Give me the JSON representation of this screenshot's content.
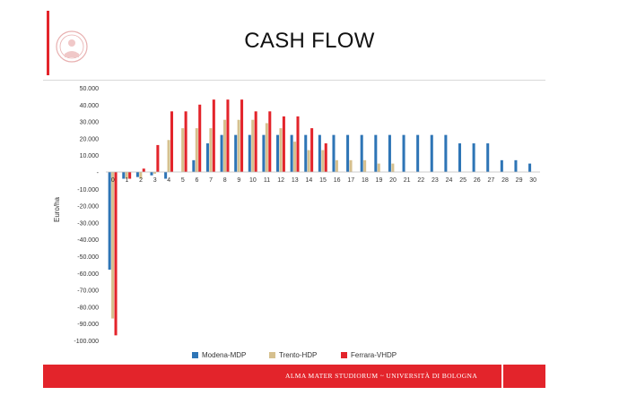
{
  "slide": {
    "title": "CASH FLOW",
    "footer_text": "ALMA MATER STUDIORUM ~ UNIVERSITÀ DI BOLOGNA",
    "footer_color": "#e3242b"
  },
  "chart_data": {
    "type": "bar",
    "title": "",
    "xlabel": "",
    "ylabel": "Euro/ha",
    "ylim": [
      -100000,
      50000
    ],
    "ytick_step": 10000,
    "ytick_labels": [
      "50.000",
      "40.000",
      "30.000",
      "20.000",
      "10.000",
      "-",
      "-10.000",
      "-20.000",
      "-30.000",
      "-40.000",
      "-50.000",
      "-60.000",
      "-70.000",
      "-80.000",
      "-90.000",
      "-100.000"
    ],
    "grid": false,
    "legend": "bottom",
    "categories": [
      "0",
      "1",
      "2",
      "3",
      "4",
      "5",
      "6",
      "7",
      "8",
      "9",
      "10",
      "11",
      "12",
      "13",
      "14",
      "15",
      "16",
      "17",
      "18",
      "19",
      "20",
      "21",
      "22",
      "23",
      "24",
      "25",
      "26",
      "27",
      "28",
      "29",
      "30"
    ],
    "series": [
      {
        "name": "Modena-MDP",
        "color": "#2e75b6",
        "values": [
          -58000,
          -4000,
          -3000,
          -2000,
          -4000,
          0,
          7000,
          17000,
          22000,
          22000,
          22000,
          22000,
          22000,
          22000,
          22000,
          22000,
          22000,
          22000,
          22000,
          22000,
          22000,
          22000,
          22000,
          22000,
          22000,
          17000,
          17000,
          17000,
          7000,
          7000,
          5000
        ]
      },
      {
        "name": "Trento-HDP",
        "color": "#d6c08e",
        "values": [
          -87000,
          -4000,
          -4000,
          -1000,
          19000,
          26000,
          26000,
          26000,
          31000,
          31000,
          31000,
          29000,
          26000,
          18000,
          13000,
          13000,
          7000,
          7000,
          7000,
          5000,
          5000,
          0,
          0,
          0,
          0,
          0,
          0,
          0,
          0,
          0,
          0
        ]
      },
      {
        "name": "Ferrara-VHDP",
        "color": "#e3242b",
        "values": [
          -97000,
          -4000,
          2000,
          16000,
          36000,
          36000,
          40000,
          43000,
          43000,
          43000,
          36000,
          36000,
          33000,
          33000,
          26000,
          17000,
          0,
          0,
          0,
          0,
          0,
          0,
          0,
          0,
          0,
          0,
          0,
          0,
          0,
          0,
          0
        ]
      }
    ]
  }
}
